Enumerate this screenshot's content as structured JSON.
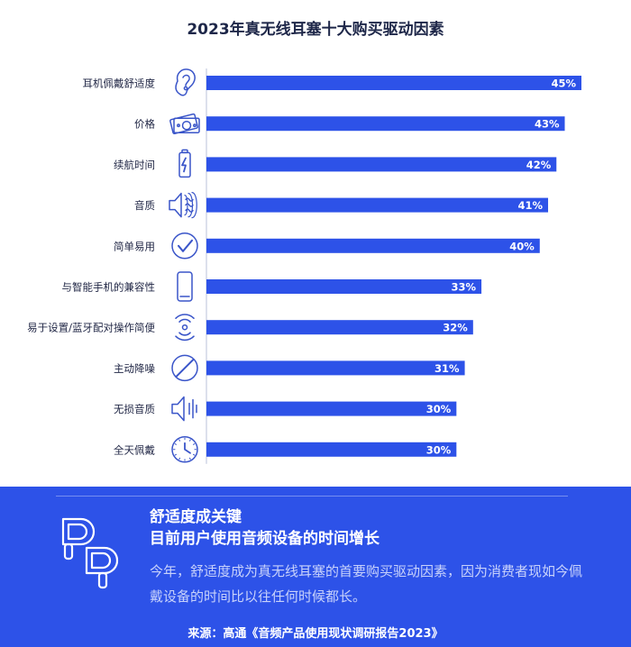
{
  "chart_data": {
    "type": "bar",
    "orientation": "horizontal",
    "title": "2023年真无线耳塞十大购买驱动因素",
    "categories": [
      "耳机佩戴舒适度",
      "价格",
      "续航时间",
      "音质",
      "简单易用",
      "与智能手机的兼容性",
      "易于设置/蓝牙配对操作简便",
      "主动降噪",
      "无损音质",
      "全天佩戴"
    ],
    "values": [
      45,
      43,
      42,
      41,
      40,
      33,
      32,
      31,
      30,
      30
    ],
    "value_labels": [
      "45%",
      "43%",
      "42%",
      "41%",
      "40%",
      "33%",
      "32%",
      "31%",
      "30%",
      "30%"
    ],
    "icons": [
      "ear-icon",
      "money-icon",
      "battery-icon",
      "speaker-wave-icon",
      "checkmark-icon",
      "smartphone-icon",
      "wireless-signal-icon",
      "no-noise-icon",
      "speaker-sound-icon",
      "clock-icon"
    ],
    "xlim": [
      0,
      45
    ],
    "bar_color": "#2d52e8",
    "grid": false,
    "legend": "none"
  },
  "panel": {
    "headline_line1": "舒适度成关键",
    "headline_line2": "目前用户使用音频设备的时间增长",
    "body": "今年，舒适度成为真无线耳塞的首要购买驱动因素，因为消费者现如今佩戴设备的时间比以往任何时候都长。",
    "source": "来源：高通《音频产品使用现状调研报告2023》",
    "icon": "earbuds-icon",
    "background_color": "#2d52e8"
  }
}
